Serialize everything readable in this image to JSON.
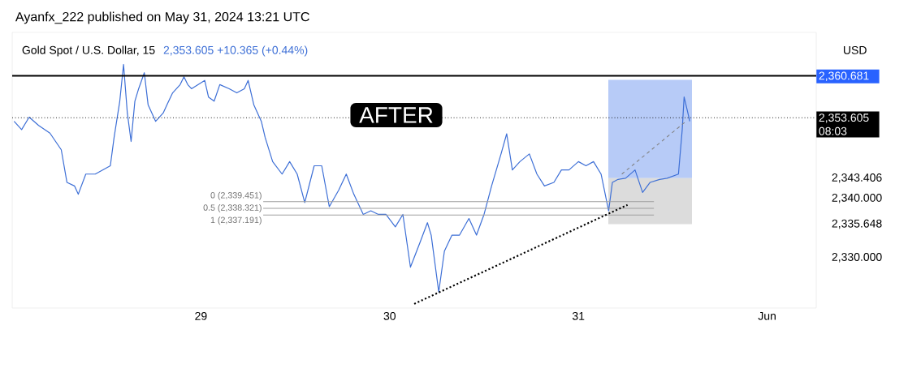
{
  "chart_data": {
    "type": "line",
    "title": "Gold Spot / U.S. Dollar, 15",
    "subtitle": "2,353.605  +10.365 (+0.44%)",
    "ylabel": "USD",
    "annotations": [
      "Ayanfx_222 published on May 31, 2024 13:21 UTC",
      "AFTER"
    ],
    "xlim": [
      28.0,
      32.26
    ],
    "ylim": [
      2321.5,
      2368
    ],
    "xticks": [
      {
        "value": 29,
        "label": "29"
      },
      {
        "value": 30,
        "label": "30"
      },
      {
        "value": 31,
        "label": "31"
      },
      {
        "value": 32,
        "label": "Jun"
      }
    ],
    "yticks": [
      {
        "value": 2330,
        "label": "2,330.000"
      },
      {
        "value": 2335.648,
        "label": "2,335.648"
      },
      {
        "value": 2340,
        "label": "2,340.000"
      },
      {
        "value": 2343.406,
        "label": "2,343.406"
      }
    ],
    "ref_lines": [
      {
        "axis": "y",
        "value": 2360.681,
        "label": "2,360.681",
        "color": "#000000",
        "line_style": "solid"
      },
      {
        "axis": "y",
        "value": 2353.605,
        "label": "2,353.605 08:03",
        "color": "#000000",
        "line_style": "dotted"
      }
    ],
    "series": [
      {
        "type": "bar",
        "color": "#b7cbf7",
        "x": [
          31.38
        ],
        "base": [
          2343.406
        ],
        "values": [
          16.6
        ]
      },
      {
        "type": "bar",
        "color": "#dcdcdc",
        "x": [
          31.38
        ],
        "base": [
          2335.648
        ],
        "values": [
          7.758
        ]
      },
      {
        "color": "#3d6fd6",
        "x": [
          28.01,
          28.05,
          28.09,
          28.14,
          28.2,
          28.26,
          28.29,
          28.33,
          28.35,
          28.39,
          28.44,
          28.48,
          28.52,
          28.54,
          28.57,
          28.59,
          28.61,
          28.63,
          28.65,
          28.67,
          28.7,
          28.72,
          28.76,
          28.8,
          28.82,
          28.85,
          28.89,
          28.91,
          28.93,
          28.95,
          29.02,
          29.04,
          29.07,
          29.1,
          29.15,
          29.19,
          29.23,
          29.25,
          29.28,
          29.32,
          29.34,
          29.38,
          29.43,
          29.47,
          29.51,
          29.55,
          29.6,
          29.64,
          29.68,
          29.73,
          29.77,
          29.81,
          29.86,
          29.9,
          29.94,
          29.98,
          30.03,
          30.07,
          30.11,
          30.16,
          30.2,
          30.22,
          30.26,
          30.29,
          30.33,
          30.37,
          30.42,
          30.46,
          30.5,
          30.54,
          30.59,
          30.62,
          30.65,
          30.69,
          30.74,
          30.78,
          30.82,
          30.87,
          30.91,
          30.95,
          31.0,
          31.04,
          31.08,
          31.12,
          31.16,
          31.18,
          31.21,
          31.25,
          31.3,
          31.34,
          31.38,
          31.43,
          31.47,
          31.53,
          31.55,
          31.56,
          31.58,
          31.59
        ],
        "values": [
          2353.0,
          2351.6,
          2353.7,
          2352.3,
          2351.0,
          2348.2,
          2342.7,
          2342.1,
          2340.7,
          2344.1,
          2344.1,
          2344.8,
          2345.5,
          2350.3,
          2356.4,
          2362.6,
          2354.4,
          2349.6,
          2356.4,
          2358.5,
          2361.2,
          2355.8,
          2353.0,
          2354.4,
          2355.8,
          2357.8,
          2359.2,
          2360.5,
          2359.2,
          2358.5,
          2359.9,
          2357.1,
          2356.4,
          2359.2,
          2358.5,
          2357.8,
          2358.5,
          2359.9,
          2355.8,
          2353.0,
          2350.3,
          2346.2,
          2344.1,
          2346.2,
          2344.1,
          2339.3,
          2345.5,
          2345.5,
          2338.6,
          2341.4,
          2344.1,
          2340.7,
          2337.3,
          2337.9,
          2337.3,
          2337.3,
          2335.2,
          2337.3,
          2328.4,
          2332.5,
          2335.9,
          2333.8,
          2324.2,
          2331.1,
          2333.8,
          2333.8,
          2336.6,
          2333.8,
          2337.3,
          2342.1,
          2347.5,
          2350.9,
          2344.8,
          2346.2,
          2347.5,
          2344.1,
          2342.1,
          2342.7,
          2344.8,
          2344.8,
          2346.2,
          2345.5,
          2346.2,
          2344.1,
          2337.9,
          2342.7,
          2343.2,
          2343.4,
          2344.8,
          2341.0,
          2342.7,
          2343.2,
          2343.4,
          2344.1,
          2351.6,
          2357.1,
          2354.4,
          2353.0
        ]
      },
      {
        "color": "#9e9e9e",
        "name": "0 (2,339.451)",
        "x": [
          29.33,
          31.4
        ],
        "values": [
          2339.451,
          2339.451
        ]
      },
      {
        "color": "#9e9e9e",
        "name": "0.5 (2,338.321)",
        "x": [
          29.33,
          31.4
        ],
        "values": [
          2338.321,
          2338.321
        ]
      },
      {
        "color": "#9e9e9e",
        "name": "1 (2,337.191)",
        "x": [
          29.33,
          31.4
        ],
        "values": [
          2337.191,
          2337.191
        ]
      },
      {
        "color": "#000000",
        "line_style": "dotted",
        "x": [
          30.13,
          31.26
        ],
        "values": [
          2322.2,
          2338.9
        ]
      },
      {
        "color": "#808080",
        "line_style": "dashed",
        "x": [
          31.23,
          31.57
        ],
        "values": [
          2344.1,
          2353.0
        ]
      }
    ]
  }
}
